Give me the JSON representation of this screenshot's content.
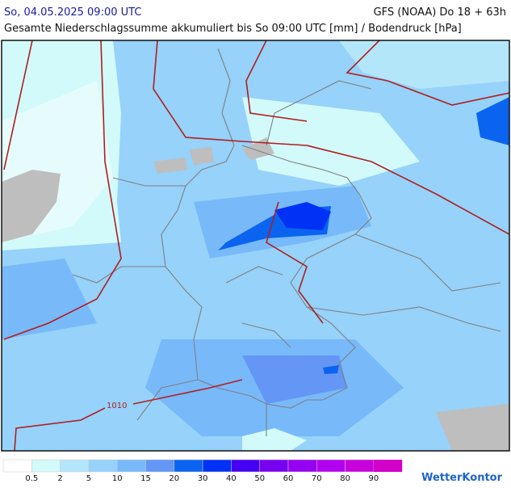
{
  "header": {
    "left": "So, 04.05.2025 09:00 UTC",
    "right": "GFS (NOAA) Do 18 + 63h",
    "subtitle": "Gesamte Niederschlagssumme akkumuliert bis So 09:00 UTC [mm] / Bodendruck [hPa]"
  },
  "map": {
    "isobar_label": "1010"
  },
  "legend": {
    "items": [
      {
        "label": "0.5",
        "color": "#ffffff"
      },
      {
        "label": "2",
        "color": "#d2fafa"
      },
      {
        "label": "5",
        "color": "#b4e6fa"
      },
      {
        "label": "10",
        "color": "#96d2fa"
      },
      {
        "label": "15",
        "color": "#78b9fa"
      },
      {
        "label": "20",
        "color": "#6496f5"
      },
      {
        "label": "30",
        "color": "#0a64f0"
      },
      {
        "label": "40",
        "color": "#0032f5"
      },
      {
        "label": "50",
        "color": "#4600f5"
      },
      {
        "label": "60",
        "color": "#7800f0"
      },
      {
        "label": "70",
        "color": "#9600f0"
      },
      {
        "label": "80",
        "color": "#b400f0"
      },
      {
        "label": "90",
        "color": "#c800dc"
      }
    ],
    "last_color": "#d200c8"
  },
  "logo": "WetterKontor"
}
